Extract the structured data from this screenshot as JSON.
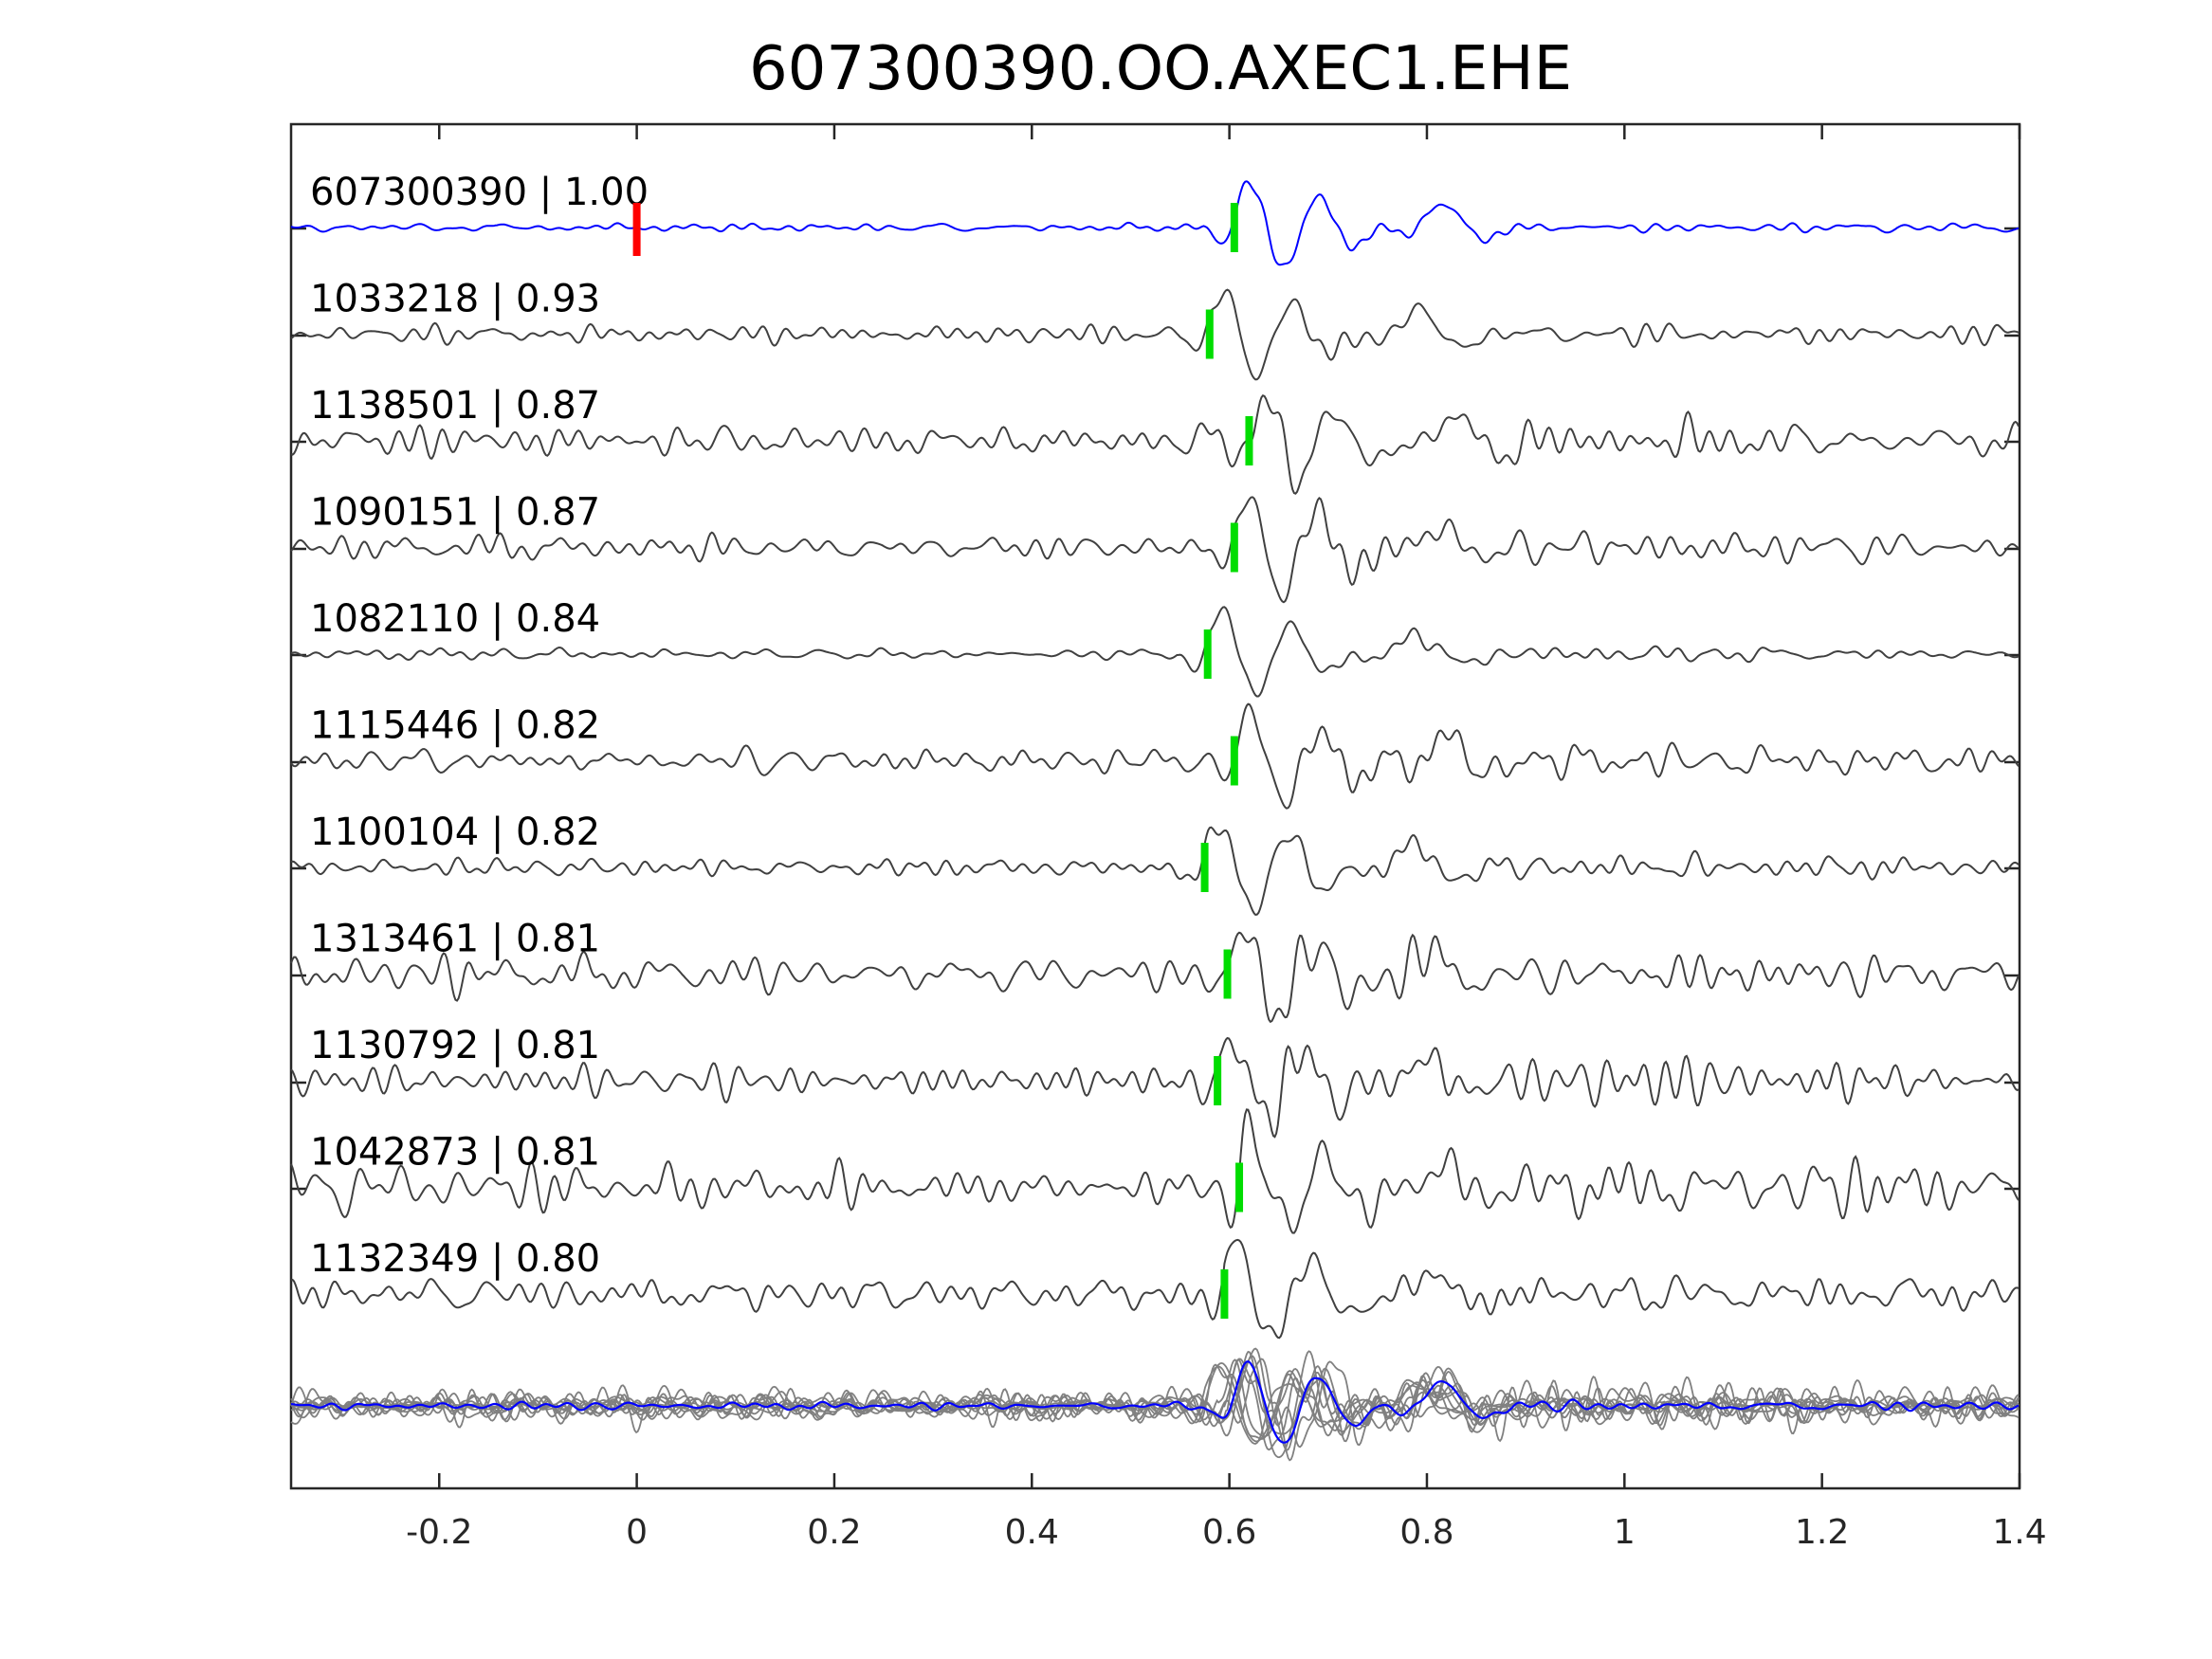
{
  "chart_data": {
    "type": "line",
    "title": "607300390.OO.AXEC1.EHE",
    "xlabel": "",
    "ylabel": "",
    "xlim": [
      -0.35,
      1.4
    ],
    "xticks": [
      -0.2,
      0,
      0.2,
      0.4,
      0.6,
      0.8,
      1,
      1.2,
      1.4
    ],
    "xtick_labels": [
      "-0.2",
      "0",
      "0.2",
      "0.4",
      "0.6",
      "0.8",
      "1",
      "1.2",
      "1.4"
    ],
    "grid": false,
    "colors": {
      "template": "#0000ff",
      "trace": "#404040",
      "stack": "#808080",
      "origin_pick": "#ff0000",
      "phase_pick": "#00dd00"
    },
    "origin_pick_time": 0.0,
    "traces": [
      {
        "label": "607300390 | 1.00",
        "id": "607300390",
        "cc": 1.0,
        "pick": 0.605,
        "noise": 0.1,
        "template": true
      },
      {
        "label": "1033218 | 0.93",
        "id": "1033218",
        "cc": 0.93,
        "pick": 0.58,
        "noise": 0.18
      },
      {
        "label": "1138501 | 0.87",
        "id": "1138501",
        "cc": 0.87,
        "pick": 0.62,
        "noise": 0.38
      },
      {
        "label": "1090151 | 0.87",
        "id": "1090151",
        "cc": 0.87,
        "pick": 0.605,
        "noise": 0.3
      },
      {
        "label": "1082110 | 0.84",
        "id": "1082110",
        "cc": 0.84,
        "pick": 0.578,
        "noise": 0.14
      },
      {
        "label": "1115446 | 0.82",
        "id": "1115446",
        "cc": 0.82,
        "pick": 0.605,
        "noise": 0.3
      },
      {
        "label": "1100104 | 0.82",
        "id": "1100104",
        "cc": 0.82,
        "pick": 0.575,
        "noise": 0.22
      },
      {
        "label": "1313461 | 0.81",
        "id": "1313461",
        "cc": 0.81,
        "pick": 0.598,
        "noise": 0.48
      },
      {
        "label": "1130792 | 0.81",
        "id": "1130792",
        "cc": 0.81,
        "pick": 0.588,
        "noise": 0.42
      },
      {
        "label": "1042873 | 0.81",
        "id": "1042873",
        "cc": 0.81,
        "pick": 0.61,
        "noise": 0.5
      },
      {
        "label": "1132349 | 0.80",
        "id": "1132349",
        "cc": 0.8,
        "pick": 0.595,
        "noise": 0.4
      }
    ]
  }
}
